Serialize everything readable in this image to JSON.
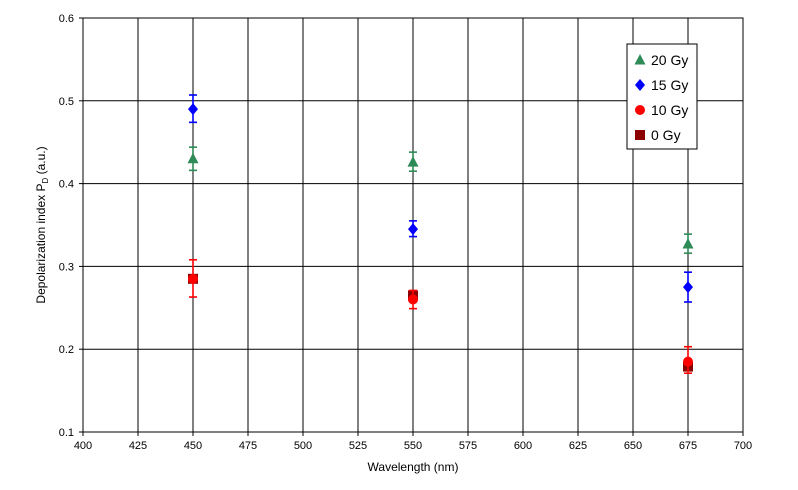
{
  "chart_data": {
    "type": "scatter",
    "title": "",
    "xlabel": "Wavelength (nm)",
    "ylabel_main": "Depolarization index P",
    "ylabel_sub": "D",
    "ylabel_unit": " (a.u.)",
    "xlim": [
      400,
      700
    ],
    "ylim": [
      0.1,
      0.6
    ],
    "x_ticks": [
      "400",
      "425",
      "450",
      "475",
      "500",
      "525",
      "550",
      "575",
      "600",
      "625",
      "650",
      "675",
      "700"
    ],
    "y_ticks": [
      "0.1",
      "0.2",
      "0.3",
      "0.4",
      "0.5",
      "0.6"
    ],
    "grid": true,
    "legend_position": "top-right",
    "series": [
      {
        "name": "20 Gy",
        "marker": "triangle",
        "color": "#2e8b57",
        "x": [
          450,
          550,
          675
        ],
        "y": [
          0.43,
          0.426,
          0.327
        ],
        "err_low": [
          0.014,
          0.011,
          0.011
        ],
        "err_high": [
          0.014,
          0.012,
          0.012
        ]
      },
      {
        "name": "15 Gy",
        "marker": "diamond",
        "color": "#0000ff",
        "x": [
          450,
          550,
          675
        ],
        "y": [
          0.49,
          0.345,
          0.275
        ],
        "err_low": [
          0.016,
          0.009,
          0.018
        ],
        "err_high": [
          0.017,
          0.01,
          0.018
        ]
      },
      {
        "name": "10 Gy",
        "marker": "circle",
        "color": "#ff0000",
        "x": [
          450,
          550,
          675
        ],
        "y": [
          0.285,
          0.26,
          0.185
        ],
        "err_low": [
          0.022,
          0.011,
          0.014
        ],
        "err_high": [
          0.023,
          0.011,
          0.018
        ]
      },
      {
        "name": "0 Gy",
        "marker": "square",
        "color": "#8b0000",
        "x": [
          450,
          550,
          675
        ],
        "y": [
          0.285,
          0.265,
          0.179
        ],
        "err_low": [
          0.0,
          0.0,
          0.0
        ],
        "err_high": [
          0.0,
          0.0,
          0.0
        ]
      }
    ]
  }
}
